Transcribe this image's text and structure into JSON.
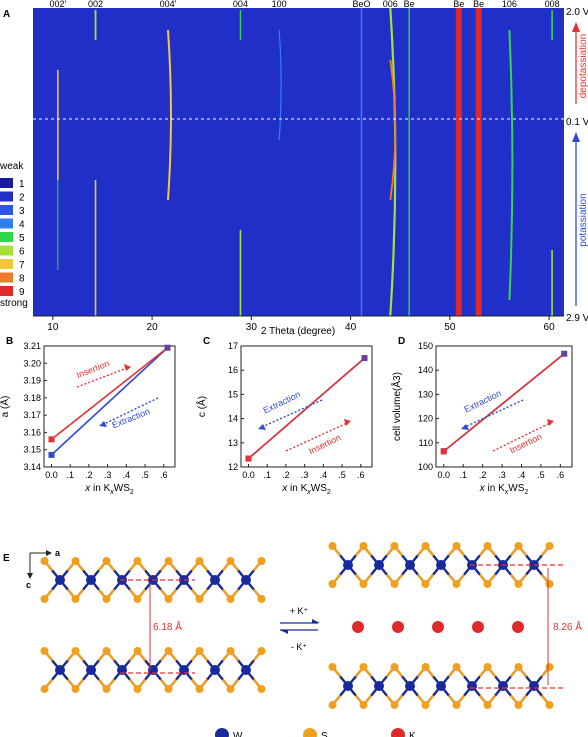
{
  "panel_letters": {
    "a": "A",
    "b": "B",
    "c": "C",
    "d": "D",
    "e": "E"
  },
  "colors": {
    "red": "#e53232",
    "blue": "#2f4bd6",
    "heat_bg": "#1f2fc8",
    "purple": "#6b3fa0"
  },
  "chart_data": [
    {
      "type": "heatmap",
      "xlabel": "2 Theta (degree)",
      "xticks": [
        10,
        20,
        30,
        40,
        50,
        60
      ],
      "xlim": [
        8,
        61.5
      ],
      "ylim_labels": {
        "top": "2.0 V",
        "middle": "0.1 V",
        "bottom": "2.9 V"
      },
      "top_labels": [
        {
          "label": "002'",
          "x": 10.5
        },
        {
          "label": "002",
          "x": 14.3
        },
        {
          "label": "004'",
          "x": 21.6
        },
        {
          "label": "004",
          "x": 28.9
        },
        {
          "label": "100",
          "x": 32.8
        },
        {
          "label": "BeO",
          "x": 41.1
        },
        {
          "label": "006",
          "x": 44.0
        },
        {
          "label": "Be",
          "x": 45.9
        },
        {
          "label": "Be",
          "x": 50.9
        },
        {
          "label": "Be",
          "x": 52.9
        },
        {
          "label": "106",
          "x": 56.0
        },
        {
          "label": "008",
          "x": 60.3
        }
      ],
      "side_labels": {
        "upper": "depotassiation",
        "lower": "potassiation"
      },
      "colorbar": {
        "title_top": "weak",
        "title_bottom": "strong",
        "levels": [
          "1",
          "2",
          "3",
          "4",
          "5",
          "6",
          "7",
          "8",
          "9"
        ],
        "colors": [
          "#1a1a9c",
          "#1f2fc8",
          "#2f55e6",
          "#2f7ff0",
          "#2fd84a",
          "#a8e03a",
          "#f0c83a",
          "#f07a2a",
          "#e02a2a"
        ]
      }
    },
    {
      "type": "line",
      "panel": "B",
      "ylabel": "a (Å)",
      "xlabel": "x in KxWS2",
      "xlim": [
        -0.04,
        0.66
      ],
      "ylim": [
        3.14,
        3.21
      ],
      "xticks": [
        "0.0",
        ".1",
        ".2",
        ".3",
        ".4",
        ".5",
        ".6"
      ],
      "yticks": [
        "3.14",
        "3.15",
        "3.16",
        "3.17",
        "3.18",
        "3.19",
        "3.20",
        "3.21"
      ],
      "series": [
        {
          "name": "Insertion",
          "x": [
            0,
            0.62
          ],
          "y": [
            3.156,
            3.209
          ]
        },
        {
          "name": "Extraction",
          "x": [
            0,
            0.62
          ],
          "y": [
            3.147,
            3.209
          ]
        }
      ]
    },
    {
      "type": "line",
      "panel": "C",
      "ylabel": "c (Å)",
      "xlabel": "x in KxWS2",
      "xlim": [
        -0.04,
        0.66
      ],
      "ylim": [
        12,
        17
      ],
      "xticks": [
        "0.0",
        ".1",
        ".2",
        ".3",
        ".4",
        ".5",
        ".6"
      ],
      "yticks": [
        "12",
        "13",
        "14",
        "15",
        "16",
        "17"
      ],
      "series": [
        {
          "name": "Insertion",
          "x": [
            0,
            0.62
          ],
          "y": [
            12.35,
            16.5
          ]
        },
        {
          "name": "Extraction",
          "x": [
            0,
            0.62
          ],
          "y": [
            12.35,
            16.5
          ]
        }
      ]
    },
    {
      "type": "line",
      "panel": "D",
      "ylabel": "cell volume(Å3)",
      "xlabel": "x in KxWS2",
      "xlim": [
        -0.04,
        0.66
      ],
      "ylim": [
        100,
        150
      ],
      "xticks": [
        "0.0",
        ".1",
        ".2",
        ".3",
        ".4",
        ".5",
        ".6"
      ],
      "yticks": [
        "100",
        "110",
        "120",
        "130",
        "140",
        "150"
      ],
      "series": [
        {
          "name": "Insertion",
          "x": [
            0,
            0.62
          ],
          "y": [
            106.5,
            146.8
          ]
        },
        {
          "name": "Extraction",
          "x": [
            0,
            0.62
          ],
          "y": [
            106.5,
            146.8
          ]
        }
      ]
    }
  ],
  "structure": {
    "axis_a": "a",
    "axis_c": "c",
    "left_spacing": "6.18 Å",
    "right_spacing": "8.26 Å",
    "arrow_top": "+ K⁺",
    "arrow_bottom": "- K⁺",
    "legend": [
      {
        "label": "W",
        "color": "#1a2a9c"
      },
      {
        "label": "S",
        "color": "#f0a020"
      },
      {
        "label": "K",
        "color": "#e02a2a"
      }
    ]
  }
}
